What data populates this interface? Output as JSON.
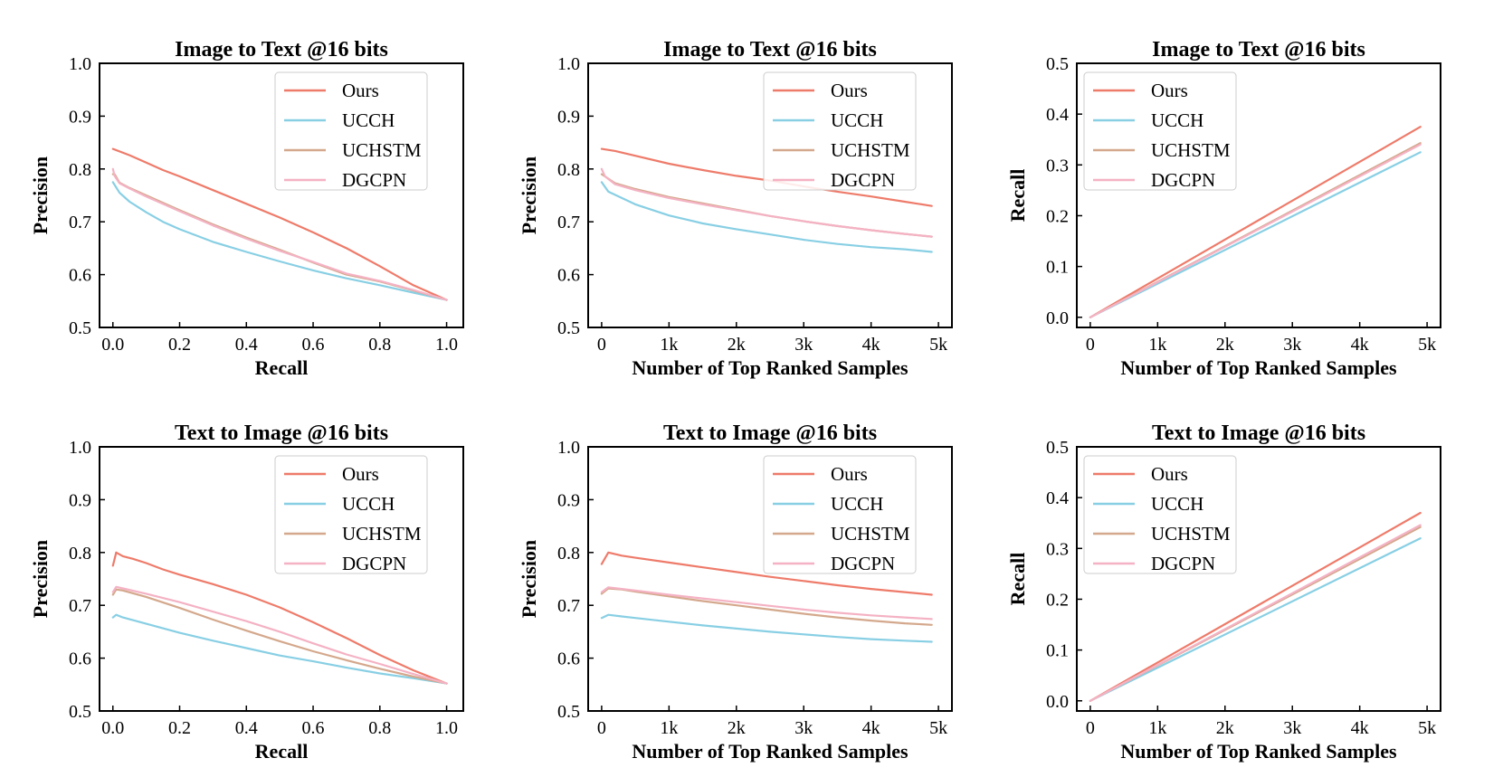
{
  "colors": {
    "Ours": "#ee7b6a",
    "UCCH": "#88cfe4",
    "UCHSTM": "#d4a88c",
    "DGCPN": "#f4b2c4"
  },
  "chart_data": [
    {
      "type": "line",
      "title": "Image to Text @16 bits",
      "xlabel": "Recall",
      "ylabel": "Precision",
      "xlim": [
        -0.04,
        1.05
      ],
      "ylim": [
        0.5,
        1.0
      ],
      "xticks": [
        0.0,
        0.2,
        0.4,
        0.6,
        0.8,
        1.0
      ],
      "xtick_labels": [
        "0.0",
        "0.2",
        "0.4",
        "0.6",
        "0.8",
        "1.0"
      ],
      "yticks": [
        0.5,
        0.6,
        0.7,
        0.8,
        0.9,
        1.0
      ],
      "ytick_labels": [
        "0.5",
        "0.6",
        "0.7",
        "0.8",
        "0.9",
        "1.0"
      ],
      "legend_position": "top-right",
      "series": [
        {
          "name": "Ours",
          "x": [
            0.0,
            0.05,
            0.1,
            0.15,
            0.2,
            0.3,
            0.4,
            0.5,
            0.6,
            0.7,
            0.8,
            0.9,
            1.0
          ],
          "y": [
            0.838,
            0.826,
            0.812,
            0.798,
            0.786,
            0.76,
            0.734,
            0.708,
            0.68,
            0.65,
            0.616,
            0.58,
            0.552
          ]
        },
        {
          "name": "UCCH",
          "x": [
            0.0,
            0.02,
            0.05,
            0.1,
            0.15,
            0.2,
            0.3,
            0.4,
            0.5,
            0.6,
            0.7,
            0.8,
            0.9,
            1.0
          ],
          "y": [
            0.775,
            0.755,
            0.738,
            0.718,
            0.7,
            0.686,
            0.662,
            0.643,
            0.625,
            0.608,
            0.593,
            0.58,
            0.566,
            0.552
          ]
        },
        {
          "name": "UCHSTM",
          "x": [
            0.0,
            0.005,
            0.02,
            0.05,
            0.1,
            0.2,
            0.3,
            0.4,
            0.5,
            0.6,
            0.7,
            0.8,
            0.9,
            1.0
          ],
          "y": [
            0.79,
            0.79,
            0.774,
            0.764,
            0.75,
            0.722,
            0.695,
            0.67,
            0.647,
            0.623,
            0.6,
            0.587,
            0.57,
            0.552
          ]
        },
        {
          "name": "DGCPN",
          "x": [
            0.0,
            0.005,
            0.02,
            0.05,
            0.1,
            0.2,
            0.3,
            0.4,
            0.5,
            0.6,
            0.7,
            0.8,
            0.9,
            1.0
          ],
          "y": [
            0.8,
            0.787,
            0.773,
            0.763,
            0.748,
            0.72,
            0.693,
            0.668,
            0.645,
            0.624,
            0.602,
            0.588,
            0.571,
            0.552
          ]
        }
      ]
    },
    {
      "type": "line",
      "title": "Image to Text @16 bits",
      "xlabel": "Number of Top Ranked Samples",
      "ylabel": "Precision",
      "xlim": [
        -0.2,
        5.2
      ],
      "ylim": [
        0.5,
        1.0
      ],
      "xticks": [
        0,
        1,
        2,
        3,
        4,
        5
      ],
      "xtick_labels": [
        "0",
        "1k",
        "2k",
        "3k",
        "4k",
        "5k"
      ],
      "yticks": [
        0.5,
        0.6,
        0.7,
        0.8,
        0.9,
        1.0
      ],
      "ytick_labels": [
        "0.5",
        "0.6",
        "0.7",
        "0.8",
        "0.9",
        "1.0"
      ],
      "legend_position": "top-right",
      "series": [
        {
          "name": "Ours",
          "x": [
            0.0,
            0.2,
            0.5,
            1.0,
            1.5,
            2.0,
            2.5,
            3.0,
            3.5,
            4.0,
            4.5,
            4.9
          ],
          "y": [
            0.838,
            0.834,
            0.825,
            0.81,
            0.798,
            0.787,
            0.778,
            0.767,
            0.757,
            0.748,
            0.738,
            0.73
          ]
        },
        {
          "name": "UCCH",
          "x": [
            0.0,
            0.1,
            0.3,
            0.5,
            1.0,
            1.5,
            2.0,
            2.5,
            3.0,
            3.5,
            4.0,
            4.5,
            4.9
          ],
          "y": [
            0.775,
            0.757,
            0.745,
            0.733,
            0.712,
            0.697,
            0.686,
            0.676,
            0.666,
            0.658,
            0.652,
            0.648,
            0.643
          ]
        },
        {
          "name": "UCHSTM",
          "x": [
            0.0,
            0.05,
            0.2,
            0.5,
            1.0,
            1.5,
            2.0,
            2.5,
            3.0,
            3.5,
            4.0,
            4.5,
            4.9
          ],
          "y": [
            0.79,
            0.786,
            0.773,
            0.762,
            0.747,
            0.735,
            0.723,
            0.711,
            0.701,
            0.692,
            0.684,
            0.677,
            0.672
          ]
        },
        {
          "name": "DGCPN",
          "x": [
            0.0,
            0.05,
            0.2,
            0.5,
            1.0,
            1.5,
            2.0,
            2.5,
            3.0,
            3.5,
            4.0,
            4.5,
            4.9
          ],
          "y": [
            0.8,
            0.786,
            0.771,
            0.76,
            0.745,
            0.733,
            0.722,
            0.711,
            0.701,
            0.692,
            0.684,
            0.677,
            0.672
          ]
        }
      ]
    },
    {
      "type": "line",
      "title": "Image to Text @16 bits",
      "xlabel": "Number of Top Ranked Samples",
      "ylabel": "Recall",
      "xlim": [
        -0.2,
        5.2
      ],
      "ylim": [
        -0.02,
        0.5
      ],
      "xticks": [
        0,
        1,
        2,
        3,
        4,
        5
      ],
      "xtick_labels": [
        "0",
        "1k",
        "2k",
        "3k",
        "4k",
        "5k"
      ],
      "yticks": [
        0.0,
        0.1,
        0.2,
        0.3,
        0.4,
        0.5
      ],
      "ytick_labels": [
        "0.0",
        "0.1",
        "0.2",
        "0.3",
        "0.4",
        "0.5"
      ],
      "legend_position": "top-left",
      "series": [
        {
          "name": "Ours",
          "x": [
            0.0,
            4.9
          ],
          "y": [
            0.0,
            0.375
          ]
        },
        {
          "name": "UCCH",
          "x": [
            0.0,
            4.9
          ],
          "y": [
            0.0,
            0.325
          ]
        },
        {
          "name": "UCHSTM",
          "x": [
            0.0,
            4.9
          ],
          "y": [
            0.0,
            0.343
          ]
        },
        {
          "name": "DGCPN",
          "x": [
            0.0,
            4.9
          ],
          "y": [
            0.0,
            0.34
          ]
        }
      ]
    },
    {
      "type": "line",
      "title": "Text to Image @16 bits",
      "xlabel": "Recall",
      "ylabel": "Precision",
      "xlim": [
        -0.04,
        1.05
      ],
      "ylim": [
        0.5,
        1.0
      ],
      "xticks": [
        0.0,
        0.2,
        0.4,
        0.6,
        0.8,
        1.0
      ],
      "xtick_labels": [
        "0.0",
        "0.2",
        "0.4",
        "0.6",
        "0.8",
        "1.0"
      ],
      "yticks": [
        0.5,
        0.6,
        0.7,
        0.8,
        0.9,
        1.0
      ],
      "ytick_labels": [
        "0.5",
        "0.6",
        "0.7",
        "0.8",
        "0.9",
        "1.0"
      ],
      "legend_position": "top-right",
      "series": [
        {
          "name": "Ours",
          "x": [
            0.0,
            0.01,
            0.03,
            0.06,
            0.1,
            0.15,
            0.2,
            0.3,
            0.4,
            0.5,
            0.6,
            0.7,
            0.8,
            0.9,
            1.0
          ],
          "y": [
            0.775,
            0.8,
            0.793,
            0.788,
            0.78,
            0.768,
            0.758,
            0.74,
            0.72,
            0.696,
            0.668,
            0.638,
            0.606,
            0.577,
            0.552
          ]
        },
        {
          "name": "UCCH",
          "x": [
            0.0,
            0.01,
            0.03,
            0.1,
            0.2,
            0.3,
            0.4,
            0.5,
            0.6,
            0.7,
            0.8,
            0.9,
            1.0
          ],
          "y": [
            0.677,
            0.682,
            0.677,
            0.665,
            0.648,
            0.633,
            0.619,
            0.605,
            0.594,
            0.582,
            0.571,
            0.562,
            0.552
          ]
        },
        {
          "name": "UCHSTM",
          "x": [
            0.0,
            0.01,
            0.03,
            0.1,
            0.2,
            0.3,
            0.4,
            0.5,
            0.6,
            0.7,
            0.8,
            0.9,
            1.0
          ],
          "y": [
            0.72,
            0.73,
            0.728,
            0.716,
            0.695,
            0.673,
            0.652,
            0.632,
            0.613,
            0.596,
            0.58,
            0.565,
            0.552
          ]
        },
        {
          "name": "DGCPN",
          "x": [
            0.0,
            0.01,
            0.03,
            0.1,
            0.2,
            0.3,
            0.4,
            0.5,
            0.6,
            0.7,
            0.8,
            0.9,
            1.0
          ],
          "y": [
            0.725,
            0.735,
            0.732,
            0.722,
            0.706,
            0.688,
            0.67,
            0.65,
            0.628,
            0.607,
            0.589,
            0.57,
            0.552
          ]
        }
      ]
    },
    {
      "type": "line",
      "title": "Text to Image @16 bits",
      "xlabel": "Number of Top Ranked Samples",
      "ylabel": "Precision",
      "xlim": [
        -0.2,
        5.2
      ],
      "ylim": [
        0.5,
        1.0
      ],
      "xticks": [
        0,
        1,
        2,
        3,
        4,
        5
      ],
      "xtick_labels": [
        "0",
        "1k",
        "2k",
        "3k",
        "4k",
        "5k"
      ],
      "yticks": [
        0.5,
        0.6,
        0.7,
        0.8,
        0.9,
        1.0
      ],
      "ytick_labels": [
        "0.5",
        "0.6",
        "0.7",
        "0.8",
        "0.9",
        "1.0"
      ],
      "legend_position": "top-right",
      "series": [
        {
          "name": "Ours",
          "x": [
            0.0,
            0.1,
            0.3,
            0.5,
            1.0,
            1.5,
            2.0,
            2.5,
            3.0,
            3.5,
            4.0,
            4.5,
            4.9
          ],
          "y": [
            0.778,
            0.8,
            0.794,
            0.79,
            0.781,
            0.772,
            0.763,
            0.754,
            0.746,
            0.738,
            0.731,
            0.725,
            0.72
          ]
        },
        {
          "name": "UCCH",
          "x": [
            0.0,
            0.1,
            0.3,
            0.5,
            1.0,
            1.5,
            2.0,
            2.5,
            3.0,
            3.5,
            4.0,
            4.5,
            4.9
          ],
          "y": [
            0.676,
            0.682,
            0.679,
            0.676,
            0.669,
            0.662,
            0.656,
            0.65,
            0.645,
            0.64,
            0.636,
            0.633,
            0.631
          ]
        },
        {
          "name": "UCHSTM",
          "x": [
            0.0,
            0.1,
            0.3,
            0.5,
            1.0,
            1.5,
            2.0,
            2.5,
            3.0,
            3.5,
            4.0,
            4.5,
            4.9
          ],
          "y": [
            0.722,
            0.732,
            0.73,
            0.726,
            0.717,
            0.708,
            0.7,
            0.692,
            0.684,
            0.677,
            0.671,
            0.666,
            0.663
          ]
        },
        {
          "name": "DGCPN",
          "x": [
            0.0,
            0.1,
            0.3,
            0.5,
            1.0,
            1.5,
            2.0,
            2.5,
            3.0,
            3.5,
            4.0,
            4.5,
            4.9
          ],
          "y": [
            0.725,
            0.734,
            0.731,
            0.728,
            0.72,
            0.713,
            0.706,
            0.699,
            0.692,
            0.686,
            0.681,
            0.677,
            0.674
          ]
        }
      ]
    },
    {
      "type": "line",
      "title": "Text to Image @16 bits",
      "xlabel": "Number of Top Ranked Samples",
      "ylabel": "Recall",
      "xlim": [
        -0.2,
        5.2
      ],
      "ylim": [
        -0.02,
        0.5
      ],
      "xticks": [
        0,
        1,
        2,
        3,
        4,
        5
      ],
      "xtick_labels": [
        "0",
        "1k",
        "2k",
        "3k",
        "4k",
        "5k"
      ],
      "yticks": [
        0.0,
        0.1,
        0.2,
        0.3,
        0.4,
        0.5
      ],
      "ytick_labels": [
        "0.0",
        "0.1",
        "0.2",
        "0.3",
        "0.4",
        "0.5"
      ],
      "legend_position": "top-left",
      "series": [
        {
          "name": "Ours",
          "x": [
            0.0,
            4.9
          ],
          "y": [
            0.0,
            0.37
          ]
        },
        {
          "name": "UCCH",
          "x": [
            0.0,
            4.9
          ],
          "y": [
            0.0,
            0.32
          ]
        },
        {
          "name": "UCHSTM",
          "x": [
            0.0,
            4.9
          ],
          "y": [
            0.0,
            0.342
          ]
        },
        {
          "name": "DGCPN",
          "x": [
            0.0,
            4.9
          ],
          "y": [
            0.0,
            0.346
          ]
        }
      ]
    }
  ]
}
